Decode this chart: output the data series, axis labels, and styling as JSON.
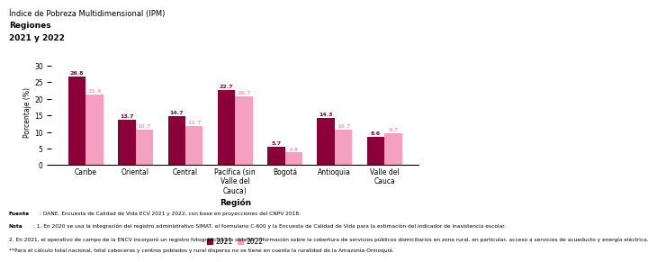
{
  "title_line1": "Índice de Pobreza Multidimensional (IPM)",
  "title_line2": "Regiones",
  "title_line3": "2021 y 2022",
  "categories": [
    "Caribe",
    "Oriental",
    "Central",
    "Pacífica (sin\nValle del\nCauca)",
    "Bogotá",
    "Antioquia",
    "Valle del\nCauca"
  ],
  "values_2021": [
    26.8,
    13.7,
    14.7,
    22.7,
    5.7,
    14.3,
    8.6
  ],
  "values_2022": [
    21.4,
    10.7,
    11.7,
    20.7,
    3.8,
    10.7,
    9.7
  ],
  "color_2021": "#8B0038",
  "color_2022": "#F4A0C0",
  "ylabel": "Porcentaje (%)",
  "xlabel": "Región",
  "ylim": [
    0,
    32
  ],
  "yticks": [
    0.0,
    5.0,
    10.0,
    15.0,
    20.0,
    25.0,
    30.0
  ],
  "legend_2021": "2021",
  "legend_2022": "2022",
  "bar_width": 0.35,
  "footnote_fuente_bold": "Fuente",
  "footnote_fuente_rest": ": DANE. Encuesta de Calidad de Vida ECV 2021 y 2022, con base en proyecciones del CNPV 2018.",
  "footnote_nota_bold": "Nota",
  "footnote_nota_rest": ": 1. En 2020 se usa la integración del registro administrativo SIMAT, el formulario C-600 y la Encuesta de Calidad de Vida para la estimación del indicador de inasistencia escolar.",
  "footnote_line3": "2. En 2021, el operativo de campo de la ENCV incorporó un registro fotográfico para obtener información sobre la cobertura de servicios públicos domiciliarios en zona rural, en particular, acceso a servicios de acueducto y energía eléctrica.",
  "footnote_line4": "**Para el cálculo total nacional, total cabeceras y centros poblados y rural disperso no se tiene en cuenta la ruralidad de la Amazonía-Orinoquiá.",
  "bg_color": "#FFFFFF",
  "label_fontsize": 4.5,
  "axis_fontsize": 5.5,
  "title_fontsize1": 6.0,
  "title_fontsize2": 6.5,
  "legend_fontsize": 5.5,
  "footnote_fontsize": 4.2,
  "xlabel_fontsize": 6.5
}
